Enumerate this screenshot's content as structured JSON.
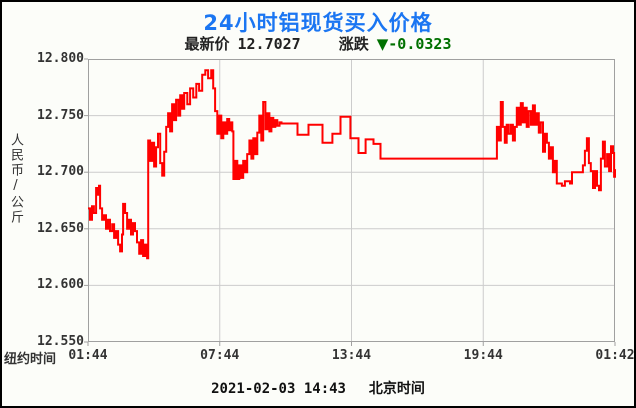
{
  "header": {
    "title": "24小时铝现货买入价格",
    "latest_label": "最新价",
    "latest_value": "12.7027",
    "change_label": "涨跌",
    "change_arrow": "▼",
    "change_value": "-0.0323"
  },
  "colors": {
    "title": "#1b76f2",
    "line": "#ff0000",
    "change": "#007000",
    "grid": "#cccccc",
    "plot_border": "#a0a0a0",
    "text": "#333333",
    "background": "#fcfdf9"
  },
  "axes": {
    "y_unit": "人民币/公斤",
    "x_prefix": "纽约时间",
    "footer_datetime": "2021-02-03 14:43",
    "footer_label": "北京时间"
  },
  "chart_data": {
    "type": "line",
    "title": "24小时铝现货买入价格",
    "series_name": "铝现货买入价",
    "ylabel": "人民币/公斤",
    "xlabel": "纽约时间",
    "ylim": [
      12.55,
      12.8
    ],
    "y_ticks": [
      "12.800",
      "12.750",
      "12.700",
      "12.650",
      "12.600",
      "12.550"
    ],
    "x_ticks": [
      "01:44",
      "07:44",
      "13:44",
      "19:44",
      "01:42"
    ],
    "x_tick_hours": [
      0,
      6,
      12,
      18,
      24
    ],
    "x_range_hours": [
      0,
      24
    ],
    "grid": true,
    "latest": 12.7027,
    "change": -0.0323,
    "points": [
      [
        0.0,
        12.668
      ],
      [
        0.09,
        12.658
      ],
      [
        0.18,
        12.67
      ],
      [
        0.27,
        12.664
      ],
      [
        0.37,
        12.686
      ],
      [
        0.46,
        12.68
      ],
      [
        0.5,
        12.688
      ],
      [
        0.55,
        12.668
      ],
      [
        0.64,
        12.658
      ],
      [
        0.73,
        12.662
      ],
      [
        0.82,
        12.65
      ],
      [
        0.91,
        12.658
      ],
      [
        1.0,
        12.648
      ],
      [
        1.1,
        12.654
      ],
      [
        1.19,
        12.642
      ],
      [
        1.28,
        12.648
      ],
      [
        1.37,
        12.636
      ],
      [
        1.46,
        12.63
      ],
      [
        1.55,
        12.645
      ],
      [
        1.6,
        12.672
      ],
      [
        1.69,
        12.664
      ],
      [
        1.78,
        12.65
      ],
      [
        1.87,
        12.658
      ],
      [
        1.96,
        12.645
      ],
      [
        2.05,
        12.655
      ],
      [
        2.14,
        12.648
      ],
      [
        2.23,
        12.638
      ],
      [
        2.33,
        12.628
      ],
      [
        2.42,
        12.64
      ],
      [
        2.51,
        12.626
      ],
      [
        2.6,
        12.636
      ],
      [
        2.69,
        12.624
      ],
      [
        2.74,
        12.728
      ],
      [
        2.83,
        12.71
      ],
      [
        2.92,
        12.726
      ],
      [
        3.01,
        12.705
      ],
      [
        3.1,
        12.722
      ],
      [
        3.19,
        12.734
      ],
      [
        3.29,
        12.708
      ],
      [
        3.38,
        12.697
      ],
      [
        3.47,
        12.718
      ],
      [
        3.56,
        12.74
      ],
      [
        3.65,
        12.752
      ],
      [
        3.74,
        12.736
      ],
      [
        3.83,
        12.76
      ],
      [
        3.92,
        12.746
      ],
      [
        4.01,
        12.764
      ],
      [
        4.11,
        12.75
      ],
      [
        4.2,
        12.768
      ],
      [
        4.29,
        12.756
      ],
      [
        4.38,
        12.77
      ],
      [
        4.52,
        12.76
      ],
      [
        4.65,
        12.774
      ],
      [
        4.79,
        12.766
      ],
      [
        4.93,
        12.778
      ],
      [
        5.06,
        12.772
      ],
      [
        5.2,
        12.786
      ],
      [
        5.34,
        12.79
      ],
      [
        5.47,
        12.783
      ],
      [
        5.61,
        12.79
      ],
      [
        5.7,
        12.774
      ],
      [
        5.79,
        12.754
      ],
      [
        5.89,
        12.734
      ],
      [
        5.98,
        12.75
      ],
      [
        6.07,
        12.73
      ],
      [
        6.16,
        12.744
      ],
      [
        6.25,
        12.734
      ],
      [
        6.34,
        12.747
      ],
      [
        6.43,
        12.737
      ],
      [
        6.52,
        12.744
      ],
      [
        6.57,
        12.736
      ],
      [
        6.62,
        12.694
      ],
      [
        6.71,
        12.71
      ],
      [
        6.8,
        12.694
      ],
      [
        6.89,
        12.706
      ],
      [
        6.98,
        12.695
      ],
      [
        7.07,
        12.71
      ],
      [
        7.16,
        12.7
      ],
      [
        7.25,
        12.716
      ],
      [
        7.35,
        12.728
      ],
      [
        7.44,
        12.712
      ],
      [
        7.53,
        12.73
      ],
      [
        7.62,
        12.716
      ],
      [
        7.71,
        12.735
      ],
      [
        7.8,
        12.75
      ],
      [
        7.89,
        12.728
      ],
      [
        7.98,
        12.762
      ],
      [
        8.08,
        12.738
      ],
      [
        8.17,
        12.752
      ],
      [
        8.26,
        12.736
      ],
      [
        8.35,
        12.748
      ],
      [
        8.44,
        12.74
      ],
      [
        8.53,
        12.746
      ],
      [
        8.62,
        12.741
      ],
      [
        8.72,
        12.744
      ],
      [
        8.81,
        12.743
      ],
      [
        9.49,
        12.743
      ],
      [
        9.54,
        12.733
      ],
      [
        9.99,
        12.733
      ],
      [
        10.04,
        12.742
      ],
      [
        10.63,
        12.742
      ],
      [
        10.68,
        12.726
      ],
      [
        11.09,
        12.726
      ],
      [
        11.13,
        12.734
      ],
      [
        11.45,
        12.734
      ],
      [
        11.5,
        12.749
      ],
      [
        11.91,
        12.749
      ],
      [
        11.95,
        12.73
      ],
      [
        12.27,
        12.73
      ],
      [
        12.32,
        12.717
      ],
      [
        12.59,
        12.717
      ],
      [
        12.64,
        12.729
      ],
      [
        12.96,
        12.729
      ],
      [
        13.0,
        12.725
      ],
      [
        13.28,
        12.725
      ],
      [
        13.32,
        12.712
      ],
      [
        18.57,
        12.712
      ],
      [
        18.62,
        12.74
      ],
      [
        18.71,
        12.728
      ],
      [
        18.8,
        12.762
      ],
      [
        18.89,
        12.74
      ],
      [
        18.98,
        12.726
      ],
      [
        19.07,
        12.742
      ],
      [
        19.16,
        12.734
      ],
      [
        19.26,
        12.742
      ],
      [
        19.35,
        12.728
      ],
      [
        19.44,
        12.74
      ],
      [
        19.53,
        12.757
      ],
      [
        19.62,
        12.742
      ],
      [
        19.71,
        12.761
      ],
      [
        19.8,
        12.744
      ],
      [
        19.89,
        12.757
      ],
      [
        19.98,
        12.74
      ],
      [
        20.07,
        12.754
      ],
      [
        20.17,
        12.742
      ],
      [
        20.26,
        12.759
      ],
      [
        20.35,
        12.742
      ],
      [
        20.44,
        12.752
      ],
      [
        20.53,
        12.735
      ],
      [
        20.62,
        12.744
      ],
      [
        20.72,
        12.718
      ],
      [
        20.81,
        12.734
      ],
      [
        20.9,
        12.726
      ],
      [
        20.99,
        12.712
      ],
      [
        21.08,
        12.722
      ],
      [
        21.17,
        12.7
      ],
      [
        21.26,
        12.71
      ],
      [
        21.35,
        12.69
      ],
      [
        21.58,
        12.688
      ],
      [
        21.72,
        12.692
      ],
      [
        21.95,
        12.69
      ],
      [
        22.04,
        12.7
      ],
      [
        22.4,
        12.7
      ],
      [
        22.54,
        12.706
      ],
      [
        22.63,
        12.719
      ],
      [
        22.72,
        12.73
      ],
      [
        22.81,
        12.708
      ],
      [
        22.9,
        12.701
      ],
      [
        23.0,
        12.686
      ],
      [
        23.09,
        12.701
      ],
      [
        23.18,
        12.688
      ],
      [
        23.27,
        12.684
      ],
      [
        23.36,
        12.712
      ],
      [
        23.45,
        12.727
      ],
      [
        23.54,
        12.705
      ],
      [
        23.64,
        12.716
      ],
      [
        23.73,
        12.701
      ],
      [
        23.82,
        12.723
      ],
      [
        23.91,
        12.717
      ],
      [
        23.96,
        12.696
      ],
      [
        24.0,
        12.7027
      ]
    ]
  }
}
